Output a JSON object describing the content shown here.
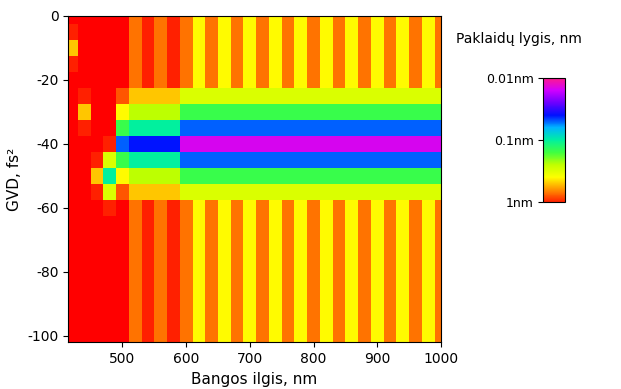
{
  "chart_data": {
    "type": "heatmap",
    "x_label": "Bangos ilgis, nm",
    "y_label": "GVD, fs²",
    "xlim": [
      415,
      1000
    ],
    "ylim": [
      -102,
      0
    ],
    "xticks": [
      500,
      600,
      700,
      800,
      900,
      1000
    ],
    "yticks": [
      -100,
      -80,
      -60,
      -40,
      -20,
      0
    ],
    "x": [
      420,
      440,
      460,
      480,
      500,
      520,
      540,
      560,
      580,
      600,
      620,
      640,
      660,
      680,
      700,
      720,
      740,
      760,
      780,
      800,
      820,
      840,
      860,
      880,
      900,
      920,
      940,
      960,
      980,
      1000
    ],
    "y": [
      0,
      -5,
      -10,
      -15,
      -20,
      -25,
      -30,
      -35,
      -40,
      -45,
      -50,
      -55,
      -60,
      -65,
      -70,
      -75,
      -80,
      -85,
      -90,
      -95,
      -100
    ],
    "cells": [
      [
        2,
        2,
        2,
        2,
        1.5,
        0.7,
        1.0,
        0.7,
        1.0,
        0.7,
        0.4,
        0.7,
        0.4,
        0.7,
        0.4,
        0.7,
        0.4,
        0.7,
        0.4,
        0.7,
        0.4,
        0.7,
        0.4,
        0.7,
        0.4,
        0.7,
        0.4,
        0.7,
        0.4,
        0.7
      ],
      [
        1,
        2,
        2,
        2,
        1.5,
        0.7,
        1.0,
        0.7,
        1.0,
        0.7,
        0.4,
        0.7,
        0.4,
        0.7,
        0.4,
        0.7,
        0.4,
        0.7,
        0.4,
        0.7,
        0.4,
        0.7,
        0.4,
        0.7,
        0.4,
        0.7,
        0.4,
        0.7,
        0.4,
        0.7
      ],
      [
        0.5,
        2,
        2,
        2,
        1.5,
        0.7,
        1.0,
        0.7,
        1.0,
        0.7,
        0.4,
        0.7,
        0.4,
        0.7,
        0.4,
        0.7,
        0.4,
        0.7,
        0.4,
        0.7,
        0.4,
        0.7,
        0.4,
        0.7,
        0.4,
        0.7,
        0.4,
        0.7,
        0.4,
        0.7
      ],
      [
        1,
        2,
        2,
        2,
        1.5,
        0.7,
        1.0,
        0.7,
        1.0,
        0.7,
        0.4,
        0.7,
        0.4,
        0.7,
        0.4,
        0.7,
        0.4,
        0.7,
        0.4,
        0.7,
        0.4,
        0.7,
        0.4,
        0.7,
        0.4,
        0.7,
        0.4,
        0.7,
        0.4,
        0.7
      ],
      [
        2,
        2,
        2,
        2,
        1.5,
        0.7,
        1.0,
        0.7,
        1.0,
        0.7,
        0.4,
        0.7,
        0.4,
        0.7,
        0.4,
        0.7,
        0.4,
        0.7,
        0.4,
        0.7,
        0.4,
        0.7,
        0.4,
        0.7,
        0.4,
        0.7,
        0.4,
        0.7,
        0.4,
        0.7
      ],
      [
        2,
        1,
        2,
        2,
        0.8,
        0.5,
        0.5,
        0.5,
        0.5,
        0.3,
        0.3,
        0.3,
        0.3,
        0.3,
        0.3,
        0.3,
        0.3,
        0.3,
        0.3,
        0.3,
        0.3,
        0.3,
        0.3,
        0.3,
        0.3,
        0.3,
        0.3,
        0.3,
        0.3,
        0.3
      ],
      [
        2,
        0.5,
        2,
        2,
        0.4,
        0.25,
        0.25,
        0.25,
        0.25,
        0.15,
        0.15,
        0.15,
        0.15,
        0.15,
        0.15,
        0.15,
        0.15,
        0.15,
        0.15,
        0.15,
        0.15,
        0.15,
        0.15,
        0.15,
        0.15,
        0.15,
        0.15,
        0.15,
        0.15,
        0.15
      ],
      [
        2,
        1,
        2,
        2,
        0.15,
        0.1,
        0.1,
        0.1,
        0.1,
        0.05,
        0.05,
        0.05,
        0.05,
        0.05,
        0.05,
        0.05,
        0.05,
        0.05,
        0.05,
        0.05,
        0.05,
        0.05,
        0.05,
        0.05,
        0.05,
        0.05,
        0.05,
        0.05,
        0.05,
        0.05
      ],
      [
        2,
        2,
        2,
        1,
        0.05,
        0.04,
        0.04,
        0.04,
        0.04,
        0.015,
        0.015,
        0.015,
        0.015,
        0.015,
        0.015,
        0.015,
        0.015,
        0.015,
        0.015,
        0.015,
        0.015,
        0.015,
        0.015,
        0.015,
        0.015,
        0.015,
        0.015,
        0.015,
        0.015,
        0.015
      ],
      [
        2,
        2,
        1,
        0.3,
        0.15,
        0.1,
        0.1,
        0.1,
        0.1,
        0.05,
        0.05,
        0.05,
        0.05,
        0.05,
        0.05,
        0.05,
        0.05,
        0.05,
        0.05,
        0.05,
        0.05,
        0.05,
        0.05,
        0.05,
        0.05,
        0.05,
        0.05,
        0.05,
        0.05,
        0.05
      ],
      [
        2,
        2,
        0.5,
        0.1,
        0.4,
        0.25,
        0.25,
        0.25,
        0.25,
        0.15,
        0.15,
        0.15,
        0.15,
        0.15,
        0.15,
        0.15,
        0.15,
        0.15,
        0.15,
        0.15,
        0.15,
        0.15,
        0.15,
        0.15,
        0.15,
        0.15,
        0.15,
        0.15,
        0.15,
        0.15
      ],
      [
        2,
        2,
        1,
        0.3,
        0.8,
        0.5,
        0.5,
        0.5,
        0.5,
        0.3,
        0.3,
        0.3,
        0.3,
        0.3,
        0.3,
        0.3,
        0.3,
        0.3,
        0.3,
        0.3,
        0.3,
        0.3,
        0.3,
        0.3,
        0.3,
        0.3,
        0.3,
        0.3,
        0.3,
        0.3
      ],
      [
        2,
        2,
        2,
        1,
        1.5,
        0.7,
        1.0,
        0.7,
        1.0,
        0.7,
        0.4,
        0.7,
        0.4,
        0.7,
        0.4,
        0.7,
        0.4,
        0.7,
        0.4,
        0.7,
        0.4,
        0.7,
        0.4,
        0.7,
        0.4,
        0.7,
        0.4,
        0.7,
        0.4,
        0.7
      ],
      [
        2,
        2,
        2,
        2,
        1.5,
        0.7,
        1.0,
        0.7,
        1.0,
        0.7,
        0.4,
        0.7,
        0.4,
        0.7,
        0.4,
        0.7,
        0.4,
        0.7,
        0.4,
        0.7,
        0.4,
        0.7,
        0.4,
        0.7,
        0.4,
        0.7,
        0.4,
        0.7,
        0.4,
        0.7
      ],
      [
        2,
        2,
        2,
        2,
        1.5,
        0.7,
        1.0,
        0.7,
        1.0,
        0.7,
        0.4,
        0.7,
        0.4,
        0.7,
        0.4,
        0.7,
        0.4,
        0.7,
        0.4,
        0.7,
        0.4,
        0.7,
        0.4,
        0.7,
        0.4,
        0.7,
        0.4,
        0.7,
        0.4,
        0.7
      ],
      [
        2,
        2,
        2,
        2,
        1.5,
        0.7,
        1.0,
        0.7,
        1.0,
        0.7,
        0.4,
        0.7,
        0.4,
        0.7,
        0.4,
        0.7,
        0.4,
        0.7,
        0.4,
        0.7,
        0.4,
        0.7,
        0.4,
        0.7,
        0.4,
        0.7,
        0.4,
        0.7,
        0.4,
        0.7
      ],
      [
        2,
        2,
        2,
        2,
        1.5,
        0.7,
        1.0,
        0.7,
        1.0,
        0.7,
        0.4,
        0.7,
        0.4,
        0.7,
        0.4,
        0.7,
        0.4,
        0.7,
        0.4,
        0.7,
        0.4,
        0.7,
        0.4,
        0.7,
        0.4,
        0.7,
        0.4,
        0.7,
        0.4,
        0.7
      ],
      [
        2,
        2,
        2,
        2,
        1.5,
        0.7,
        1.0,
        0.7,
        1.0,
        0.7,
        0.4,
        0.7,
        0.4,
        0.7,
        0.4,
        0.7,
        0.4,
        0.7,
        0.4,
        0.7,
        0.4,
        0.7,
        0.4,
        0.7,
        0.4,
        0.7,
        0.4,
        0.7,
        0.4,
        0.7
      ],
      [
        2,
        2,
        2,
        2,
        1.5,
        0.7,
        1.0,
        0.7,
        1.0,
        0.7,
        0.4,
        0.7,
        0.4,
        0.7,
        0.4,
        0.7,
        0.4,
        0.7,
        0.4,
        0.7,
        0.4,
        0.7,
        0.4,
        0.7,
        0.4,
        0.7,
        0.4,
        0.7,
        0.4,
        0.7
      ],
      [
        2,
        2,
        2,
        2,
        1.5,
        0.7,
        1.0,
        0.7,
        1.0,
        0.7,
        0.4,
        0.7,
        0.4,
        0.7,
        0.4,
        0.7,
        0.4,
        0.7,
        0.4,
        0.7,
        0.4,
        0.7,
        0.4,
        0.7,
        0.4,
        0.7,
        0.4,
        0.7,
        0.4,
        0.7
      ],
      [
        2,
        2,
        2,
        2,
        1.5,
        0.7,
        1.0,
        0.7,
        1.0,
        0.7,
        0.4,
        0.7,
        0.4,
        0.7,
        0.4,
        0.7,
        0.4,
        0.7,
        0.4,
        0.7,
        0.4,
        0.7,
        0.4,
        0.7,
        0.4,
        0.7,
        0.4,
        0.7,
        0.4,
        0.7
      ]
    ],
    "colorbar": {
      "label": "Paklaidų lygis, nm",
      "range": [
        0.01,
        1
      ],
      "ticks": [
        {
          "value": 0.01,
          "label": "0.01nm"
        },
        {
          "value": 0.1,
          "label": "0.1nm"
        },
        {
          "value": 1,
          "label": "1nm"
        }
      ]
    }
  }
}
